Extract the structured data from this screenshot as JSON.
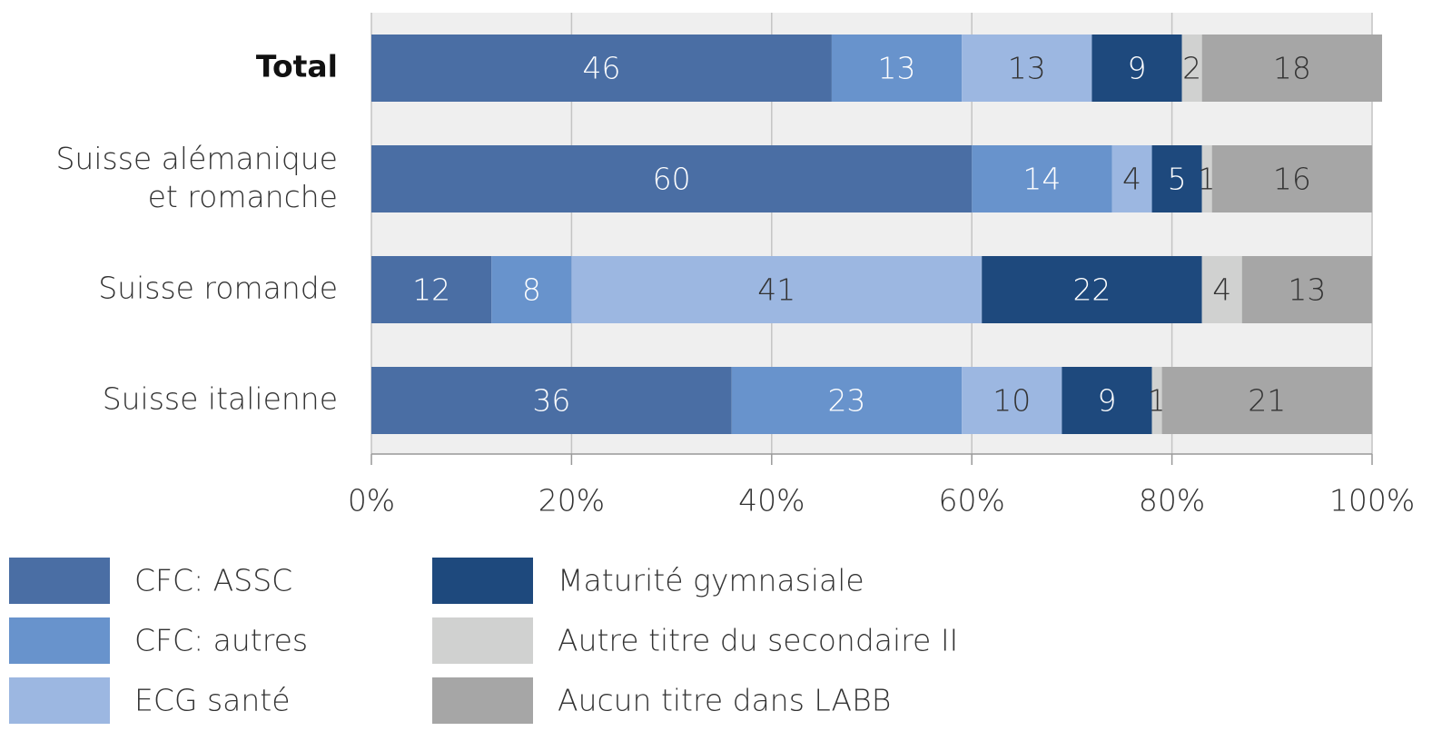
{
  "chart_data": {
    "type": "stacked-barh",
    "categories": [
      "Total",
      "Suisse alémanique\net romanche",
      "Suisse romande",
      "Suisse italienne"
    ],
    "series": [
      {
        "name": "CFC: ASSC",
        "color": "#4a6ea4",
        "label_color": "#ffffff",
        "values": [
          46,
          60,
          12,
          36
        ]
      },
      {
        "name": "CFC: autres",
        "color": "#6893cc",
        "label_color": "#ffffff",
        "values": [
          13,
          14,
          8,
          23
        ]
      },
      {
        "name": "ECG santé",
        "color": "#9cb7e1",
        "label_color": "#333333",
        "values": [
          13,
          4,
          41,
          10
        ]
      },
      {
        "name": "Maturité gymnasiale",
        "color": "#1e497d",
        "label_color": "#ffffff",
        "values": [
          9,
          5,
          22,
          9
        ]
      },
      {
        "name": "Autre titre du secondaire II",
        "color": "#d0d1d0",
        "label_color": "#333333",
        "values": [
          2,
          1,
          4,
          1
        ]
      },
      {
        "name": "Aucun titre dans LABB",
        "color": "#a6a6a6",
        "label_color": "#333333",
        "values": [
          18,
          16,
          13,
          21
        ]
      }
    ],
    "xlim": [
      0,
      100
    ],
    "xticks": [
      {
        "value": 0,
        "label": "0%"
      },
      {
        "value": 20,
        "label": "20%"
      },
      {
        "value": 40,
        "label": "40%"
      },
      {
        "value": 60,
        "label": "60%"
      },
      {
        "value": 80,
        "label": "80%"
      },
      {
        "value": 100,
        "label": "100%"
      }
    ],
    "grid": true
  }
}
